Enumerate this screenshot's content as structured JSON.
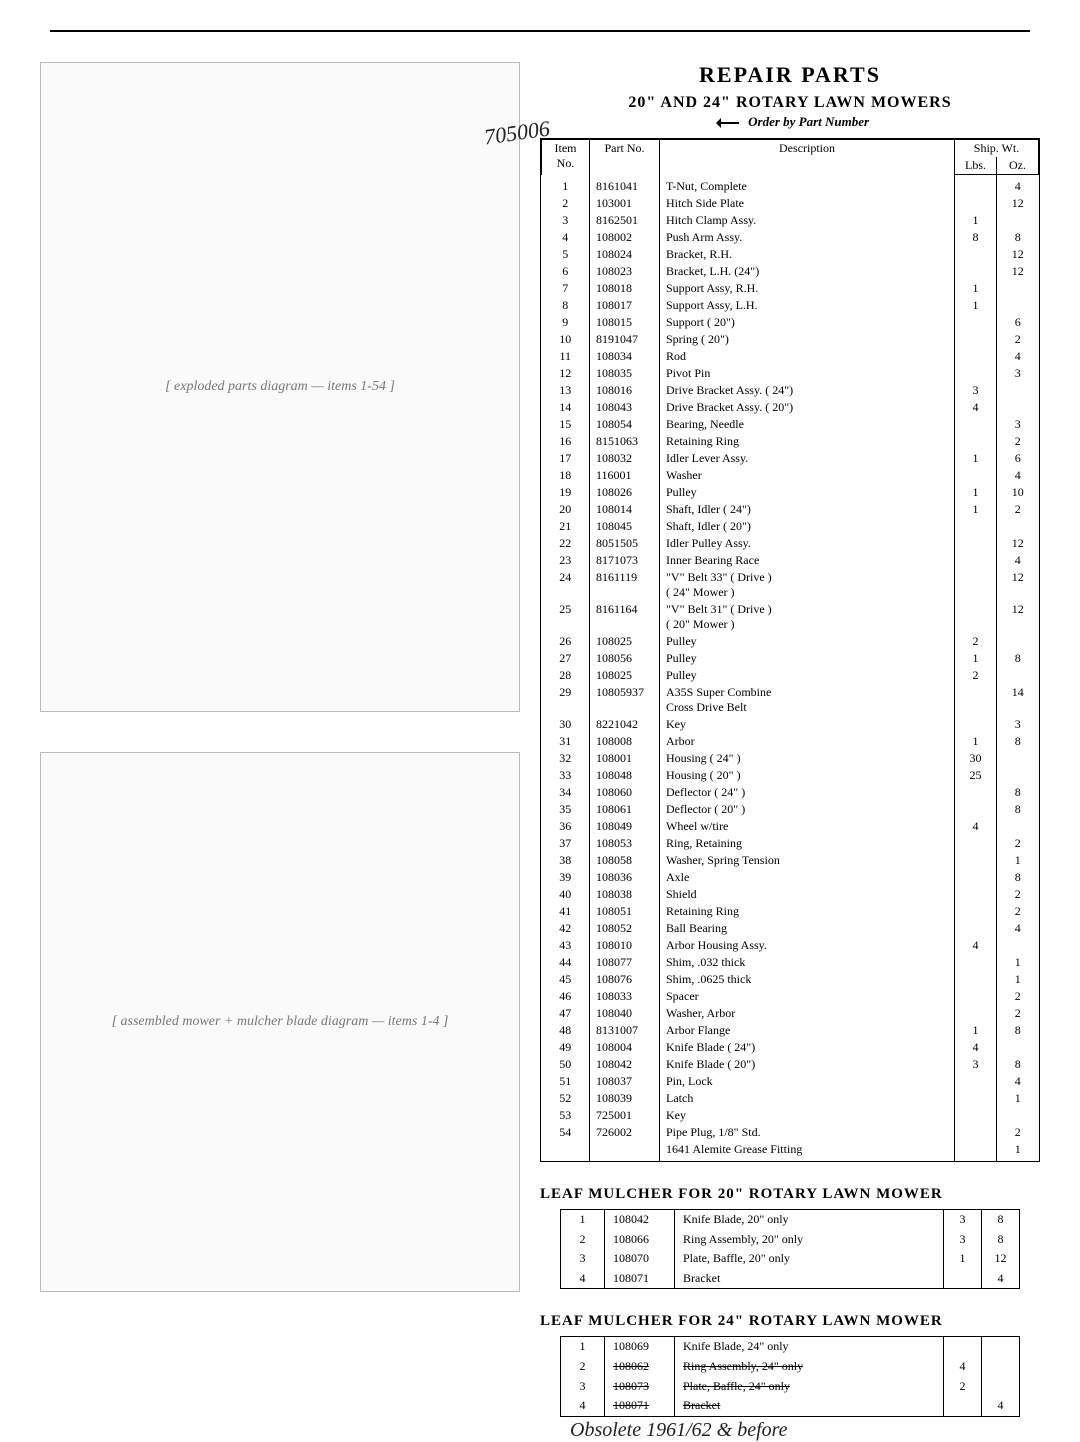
{
  "header": {
    "title": "REPAIR PARTS",
    "subtitle": "20\" AND 24\" ROTARY LAWN MOWERS",
    "orderline": "Order by Part Number"
  },
  "handwriting": {
    "model_no": "705006",
    "obsolete": "Obsolete 1961/62 & before"
  },
  "diagram_labels": {
    "exploded": "[ exploded parts diagram — items 1-54 ]",
    "assembly": "[ assembled mower + mulcher blade diagram — items 1-4 ]"
  },
  "main_table": {
    "headers": {
      "item": "Item\nNo.",
      "part": "Part\nNo.",
      "desc": "Description",
      "ship": "Ship. Wt.",
      "lbs": "Lbs.",
      "oz": "Oz."
    },
    "rows": [
      {
        "item": "1",
        "part": "8161041",
        "desc": "T-Nut, Complete",
        "lbs": "",
        "oz": "4"
      },
      {
        "item": "2",
        "part": "103001",
        "desc": "Hitch Side Plate",
        "lbs": "",
        "oz": "12"
      },
      {
        "item": "3",
        "part": "8162501",
        "desc": "Hitch Clamp Assy.",
        "lbs": "1",
        "oz": ""
      },
      {
        "item": "4",
        "part": "108002",
        "desc": "Push Arm Assy.",
        "lbs": "8",
        "oz": "8"
      },
      {
        "item": "5",
        "part": "108024",
        "desc": "Bracket, R.H.",
        "lbs": "",
        "oz": "12"
      },
      {
        "item": "6",
        "part": "108023",
        "desc": "Bracket, L.H. (24\")",
        "lbs": "",
        "oz": "12"
      },
      {
        "item": "7",
        "part": "108018",
        "desc": "Support Assy, R.H.",
        "lbs": "1",
        "oz": ""
      },
      {
        "item": "8",
        "part": "108017",
        "desc": "Support Assy, L.H.",
        "lbs": "1",
        "oz": ""
      },
      {
        "item": "9",
        "part": "108015",
        "desc": "Support ( 20\")",
        "lbs": "",
        "oz": "6"
      },
      {
        "item": "10",
        "part": "8191047",
        "desc": "Spring ( 20\")",
        "lbs": "",
        "oz": "2"
      },
      {
        "item": "11",
        "part": "108034",
        "desc": "Rod",
        "lbs": "",
        "oz": "4"
      },
      {
        "item": "12",
        "part": "108035",
        "desc": "Pivot Pin",
        "lbs": "",
        "oz": "3"
      },
      {
        "item": "13",
        "part": "108016",
        "desc": "Drive Bracket Assy. ( 24\")",
        "lbs": "3",
        "oz": ""
      },
      {
        "item": "14",
        "part": "108043",
        "desc": "Drive Bracket Assy. ( 20\")",
        "lbs": "4",
        "oz": ""
      },
      {
        "item": "15",
        "part": "108054",
        "desc": "Bearing, Needle",
        "lbs": "",
        "oz": "3"
      },
      {
        "item": "16",
        "part": "8151063",
        "desc": "Retaining Ring",
        "lbs": "",
        "oz": "2"
      },
      {
        "item": "17",
        "part": "108032",
        "desc": "Idler Lever Assy.",
        "lbs": "1",
        "oz": "6"
      },
      {
        "item": "18",
        "part": "116001",
        "desc": "Washer",
        "lbs": "",
        "oz": "4"
      },
      {
        "item": "19",
        "part": "108026",
        "desc": "Pulley",
        "lbs": "1",
        "oz": "10"
      },
      {
        "item": "20",
        "part": "108014",
        "desc": "Shaft, Idler ( 24\")",
        "lbs": "1",
        "oz": "2"
      },
      {
        "item": "21",
        "part": "108045",
        "desc": "Shaft, Idler ( 20\")",
        "lbs": "",
        "oz": ""
      },
      {
        "item": "22",
        "part": "8051505",
        "desc": "Idler Pulley Assy.",
        "lbs": "",
        "oz": "12"
      },
      {
        "item": "23",
        "part": "8171073",
        "desc": "Inner Bearing Race",
        "lbs": "",
        "oz": "4"
      },
      {
        "item": "24",
        "part": "8161119",
        "desc": "\"V\" Belt 33\" ( Drive )\n( 24\" Mower )",
        "lbs": "",
        "oz": "12"
      },
      {
        "item": "25",
        "part": "8161164",
        "desc": "\"V\" Belt 31\" ( Drive )\n( 20\" Mower )",
        "lbs": "",
        "oz": "12"
      },
      {
        "item": "26",
        "part": "108025",
        "desc": "Pulley",
        "lbs": "2",
        "oz": ""
      },
      {
        "item": "27",
        "part": "108056",
        "desc": "Pulley",
        "lbs": "1",
        "oz": "8"
      },
      {
        "item": "28",
        "part": "108025",
        "desc": "Pulley",
        "lbs": "2",
        "oz": ""
      },
      {
        "item": "29",
        "part": "10805937",
        "desc": "A35S Super Combine\nCross Drive Belt",
        "lbs": "",
        "oz": "14"
      },
      {
        "item": "30",
        "part": "8221042",
        "desc": "Key",
        "lbs": "",
        "oz": "3"
      },
      {
        "item": "31",
        "part": "108008",
        "desc": "Arbor",
        "lbs": "1",
        "oz": "8"
      },
      {
        "item": "32",
        "part": "108001",
        "desc": "Housing ( 24\" )",
        "lbs": "30",
        "oz": ""
      },
      {
        "item": "33",
        "part": "108048",
        "desc": "Housing ( 20\" )",
        "lbs": "25",
        "oz": ""
      },
      {
        "item": "34",
        "part": "108060",
        "desc": "Deflector ( 24\" )",
        "lbs": "",
        "oz": "8"
      },
      {
        "item": "35",
        "part": "108061",
        "desc": "Deflector ( 20\" )",
        "lbs": "",
        "oz": "8"
      },
      {
        "item": "36",
        "part": "108049",
        "desc": "Wheel w/tire",
        "lbs": "4",
        "oz": ""
      },
      {
        "item": "37",
        "part": "108053",
        "desc": "Ring, Retaining",
        "lbs": "",
        "oz": "2"
      },
      {
        "item": "38",
        "part": "108058",
        "desc": "Washer, Spring Tension",
        "lbs": "",
        "oz": "1"
      },
      {
        "item": "39",
        "part": "108036",
        "desc": "Axle",
        "lbs": "",
        "oz": "8"
      },
      {
        "item": "40",
        "part": "108038",
        "desc": "Shield",
        "lbs": "",
        "oz": "2"
      },
      {
        "item": "41",
        "part": "108051",
        "desc": "Retaining Ring",
        "lbs": "",
        "oz": "2"
      },
      {
        "item": "42",
        "part": "108052",
        "desc": "Ball Bearing",
        "lbs": "",
        "oz": "4"
      },
      {
        "item": "43",
        "part": "108010",
        "desc": "Arbor Housing Assy.",
        "lbs": "4",
        "oz": ""
      },
      {
        "item": "44",
        "part": "108077",
        "desc": "Shim, .032 thick",
        "lbs": "",
        "oz": "1"
      },
      {
        "item": "45",
        "part": "108076",
        "desc": "Shim, .0625 thick",
        "lbs": "",
        "oz": "1"
      },
      {
        "item": "46",
        "part": "108033",
        "desc": "Spacer",
        "lbs": "",
        "oz": "2"
      },
      {
        "item": "47",
        "part": "108040",
        "desc": "Washer, Arbor",
        "lbs": "",
        "oz": "2"
      },
      {
        "item": "48",
        "part": "8131007",
        "desc": "Arbor Flange",
        "lbs": "1",
        "oz": "8"
      },
      {
        "item": "49",
        "part": "108004",
        "desc": "Knife Blade ( 24\")",
        "lbs": "4",
        "oz": ""
      },
      {
        "item": "50",
        "part": "108042",
        "desc": "Knife Blade ( 20\")",
        "lbs": "3",
        "oz": "8"
      },
      {
        "item": "51",
        "part": "108037",
        "desc": "Pin, Lock",
        "lbs": "",
        "oz": "4"
      },
      {
        "item": "52",
        "part": "108039",
        "desc": "Latch",
        "lbs": "",
        "oz": "1"
      },
      {
        "item": "53",
        "part": "725001",
        "desc": "Key",
        "lbs": "",
        "oz": ""
      },
      {
        "item": "54",
        "part": "726002",
        "desc": "Pipe Plug, 1/8\" Std.",
        "lbs": "",
        "oz": "2"
      },
      {
        "item": "",
        "part": "",
        "desc": "1641 Alemite Grease Fitting",
        "lbs": "",
        "oz": "1"
      }
    ]
  },
  "section20": {
    "title": "LEAF MULCHER FOR 20\" ROTARY LAWN MOWER",
    "rows": [
      {
        "item": "1",
        "part": "108042",
        "desc": "Knife Blade, 20\" only",
        "lbs": "3",
        "oz": "8"
      },
      {
        "item": "2",
        "part": "108066",
        "desc": "Ring Assembly, 20\" only",
        "lbs": "3",
        "oz": "8"
      },
      {
        "item": "3",
        "part": "108070",
        "desc": "Plate, Baffle, 20\" only",
        "lbs": "1",
        "oz": "12"
      },
      {
        "item": "4",
        "part": "108071",
        "desc": "Bracket",
        "lbs": "",
        "oz": "4"
      }
    ]
  },
  "section24": {
    "title": "LEAF MULCHER FOR 24\" ROTARY LAWN MOWER",
    "rows": [
      {
        "item": "1",
        "part": "108069",
        "desc": "Knife Blade, 24\" only",
        "strike": false,
        "lbs": "",
        "oz": ""
      },
      {
        "item": "2",
        "part": "108062",
        "desc": "Ring Assembly, 24\" only",
        "strike": true,
        "lbs": "4",
        "oz": ""
      },
      {
        "item": "3",
        "part": "108073",
        "desc": "Plate, Baffle, 24\" only",
        "strike": true,
        "lbs": "2",
        "oz": ""
      },
      {
        "item": "4",
        "part": "108071",
        "desc": "Bracket",
        "strike": true,
        "lbs": "",
        "oz": "4"
      }
    ]
  }
}
